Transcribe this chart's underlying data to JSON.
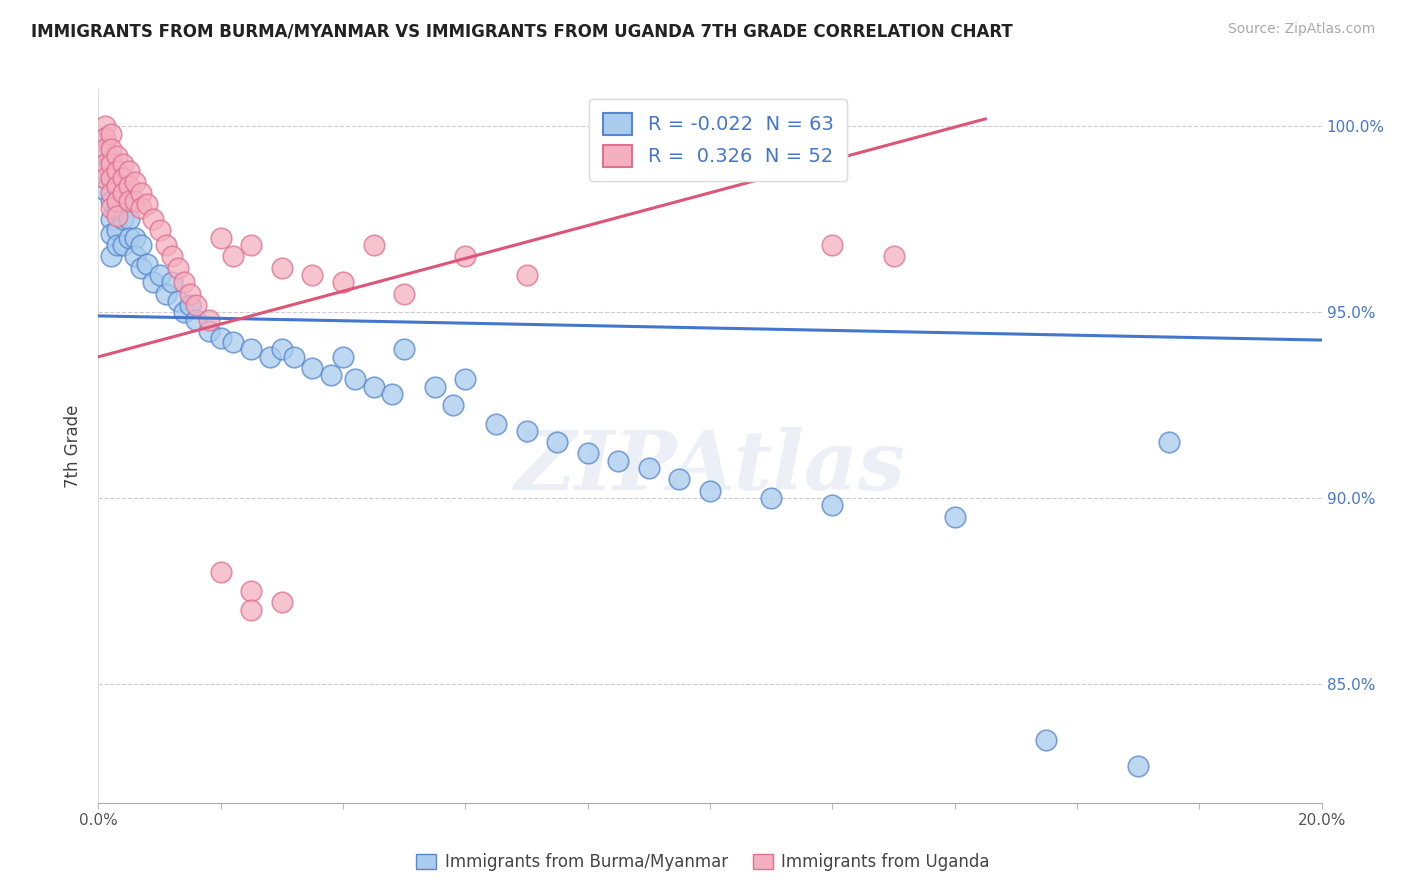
{
  "title": "IMMIGRANTS FROM BURMA/MYANMAR VS IMMIGRANTS FROM UGANDA 7TH GRADE CORRELATION CHART",
  "source": "Source: ZipAtlas.com",
  "ylabel": "7th Grade",
  "watermark": "ZIPAtlas",
  "legend_blue_r": "-0.022",
  "legend_blue_n": "63",
  "legend_pink_r": "0.326",
  "legend_pink_n": "52",
  "legend_blue_label": "Immigrants from Burma/Myanmar",
  "legend_pink_label": "Immigrants from Uganda",
  "xlim": [
    0.0,
    0.2
  ],
  "ylim": [
    0.818,
    1.01
  ],
  "yticks": [
    0.85,
    0.9,
    0.95,
    1.0
  ],
  "ytick_labels": [
    "85.0%",
    "90.0%",
    "95.0%",
    "100.0%"
  ],
  "grid_color": "#cccccc",
  "blue_fill": "#aaccee",
  "pink_fill": "#f4b0c0",
  "blue_edge": "#5588cc",
  "pink_edge": "#e07090",
  "blue_line_color": "#4477cc",
  "pink_line_color": "#dd5577",
  "rvalue_color": "#4477cc",
  "blue_scatter": [
    [
      0.001,
      0.997
    ],
    [
      0.001,
      0.993
    ],
    [
      0.001,
      0.988
    ],
    [
      0.001,
      0.983
    ],
    [
      0.002,
      0.991
    ],
    [
      0.002,
      0.987
    ],
    [
      0.002,
      0.98
    ],
    [
      0.002,
      0.975
    ],
    [
      0.002,
      0.971
    ],
    [
      0.002,
      0.965
    ],
    [
      0.003,
      0.985
    ],
    [
      0.003,
      0.978
    ],
    [
      0.003,
      0.972
    ],
    [
      0.003,
      0.968
    ],
    [
      0.004,
      0.98
    ],
    [
      0.004,
      0.975
    ],
    [
      0.004,
      0.968
    ],
    [
      0.005,
      0.975
    ],
    [
      0.005,
      0.97
    ],
    [
      0.006,
      0.97
    ],
    [
      0.006,
      0.965
    ],
    [
      0.007,
      0.968
    ],
    [
      0.007,
      0.962
    ],
    [
      0.008,
      0.963
    ],
    [
      0.009,
      0.958
    ],
    [
      0.01,
      0.96
    ],
    [
      0.011,
      0.955
    ],
    [
      0.012,
      0.958
    ],
    [
      0.013,
      0.953
    ],
    [
      0.014,
      0.95
    ],
    [
      0.015,
      0.952
    ],
    [
      0.016,
      0.948
    ],
    [
      0.018,
      0.945
    ],
    [
      0.02,
      0.943
    ],
    [
      0.022,
      0.942
    ],
    [
      0.025,
      0.94
    ],
    [
      0.028,
      0.938
    ],
    [
      0.03,
      0.94
    ],
    [
      0.032,
      0.938
    ],
    [
      0.035,
      0.935
    ],
    [
      0.038,
      0.933
    ],
    [
      0.04,
      0.938
    ],
    [
      0.042,
      0.932
    ],
    [
      0.045,
      0.93
    ],
    [
      0.048,
      0.928
    ],
    [
      0.05,
      0.94
    ],
    [
      0.055,
      0.93
    ],
    [
      0.058,
      0.925
    ],
    [
      0.06,
      0.932
    ],
    [
      0.065,
      0.92
    ],
    [
      0.07,
      0.918
    ],
    [
      0.075,
      0.915
    ],
    [
      0.08,
      0.912
    ],
    [
      0.085,
      0.91
    ],
    [
      0.09,
      0.908
    ],
    [
      0.095,
      0.905
    ],
    [
      0.1,
      0.902
    ],
    [
      0.11,
      0.9
    ],
    [
      0.12,
      0.898
    ],
    [
      0.14,
      0.895
    ],
    [
      0.155,
      0.835
    ],
    [
      0.17,
      0.828
    ],
    [
      0.175,
      0.915
    ]
  ],
  "pink_scatter": [
    [
      0.001,
      1.0
    ],
    [
      0.001,
      0.997
    ],
    [
      0.001,
      0.994
    ],
    [
      0.001,
      0.99
    ],
    [
      0.001,
      0.986
    ],
    [
      0.002,
      0.998
    ],
    [
      0.002,
      0.994
    ],
    [
      0.002,
      0.99
    ],
    [
      0.002,
      0.986
    ],
    [
      0.002,
      0.982
    ],
    [
      0.002,
      0.978
    ],
    [
      0.003,
      0.992
    ],
    [
      0.003,
      0.988
    ],
    [
      0.003,
      0.984
    ],
    [
      0.003,
      0.98
    ],
    [
      0.003,
      0.976
    ],
    [
      0.004,
      0.99
    ],
    [
      0.004,
      0.986
    ],
    [
      0.004,
      0.982
    ],
    [
      0.005,
      0.988
    ],
    [
      0.005,
      0.984
    ],
    [
      0.005,
      0.98
    ],
    [
      0.006,
      0.985
    ],
    [
      0.006,
      0.98
    ],
    [
      0.007,
      0.982
    ],
    [
      0.007,
      0.978
    ],
    [
      0.008,
      0.979
    ],
    [
      0.009,
      0.975
    ],
    [
      0.01,
      0.972
    ],
    [
      0.011,
      0.968
    ],
    [
      0.012,
      0.965
    ],
    [
      0.013,
      0.962
    ],
    [
      0.014,
      0.958
    ],
    [
      0.015,
      0.955
    ],
    [
      0.016,
      0.952
    ],
    [
      0.018,
      0.948
    ],
    [
      0.02,
      0.97
    ],
    [
      0.022,
      0.965
    ],
    [
      0.025,
      0.968
    ],
    [
      0.03,
      0.962
    ],
    [
      0.035,
      0.96
    ],
    [
      0.04,
      0.958
    ],
    [
      0.045,
      0.968
    ],
    [
      0.05,
      0.955
    ],
    [
      0.06,
      0.965
    ],
    [
      0.07,
      0.96
    ],
    [
      0.02,
      0.88
    ],
    [
      0.025,
      0.875
    ],
    [
      0.025,
      0.87
    ],
    [
      0.03,
      0.872
    ],
    [
      0.12,
      0.968
    ],
    [
      0.13,
      0.965
    ]
  ],
  "blue_trend_x": [
    0.0,
    0.2
  ],
  "blue_trend_y": [
    0.949,
    0.9425
  ],
  "pink_trend_x": [
    0.0,
    0.145
  ],
  "pink_trend_y": [
    0.938,
    1.002
  ]
}
